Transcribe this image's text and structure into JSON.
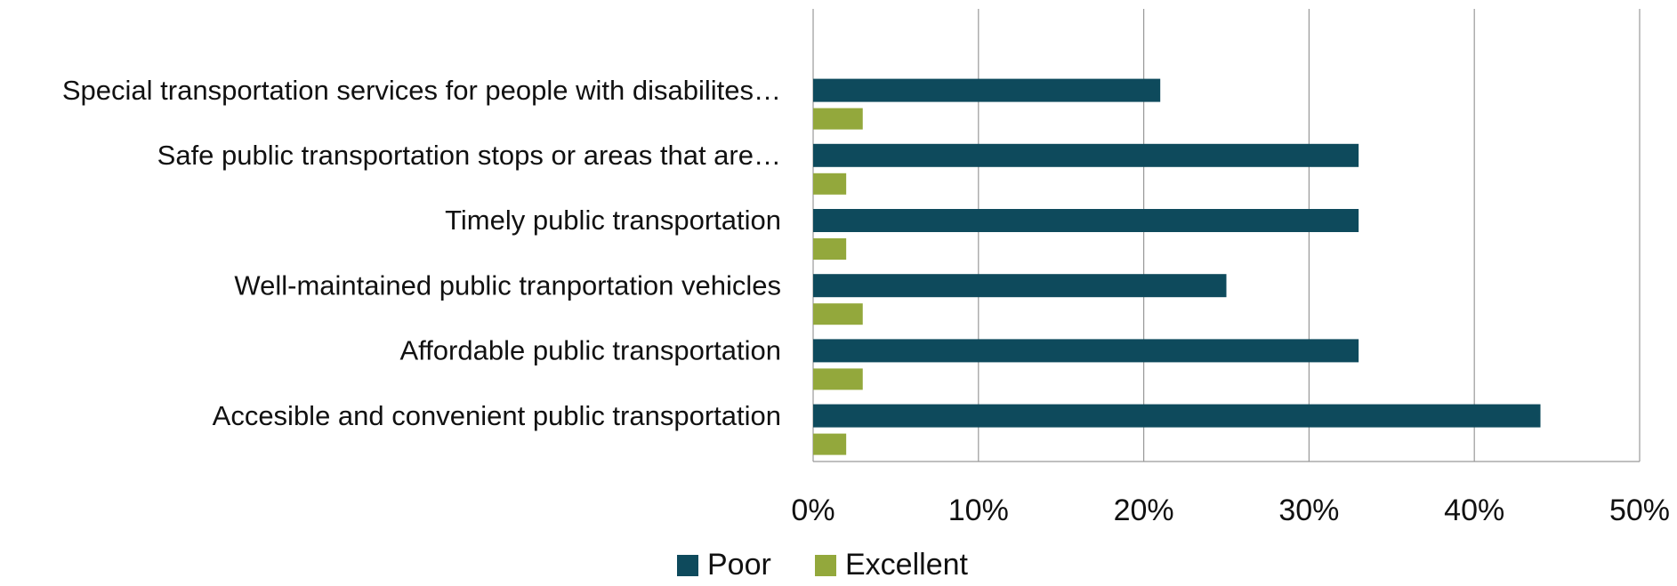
{
  "chart_data": {
    "type": "hbar",
    "categories": [
      "Special transportation services for people with disabilites…",
      "Safe public transportation stops or areas that are…",
      "Timely public transportation",
      "Well-maintained public tranportation vehicles",
      "Affordable public transportation",
      "Accesible and convenient public transportation"
    ],
    "series": [
      {
        "name": "Poor",
        "color": "#0e4a5c",
        "values": [
          21,
          33,
          33,
          25,
          33,
          44
        ]
      },
      {
        "name": "Excellent",
        "color": "#93a83c",
        "values": [
          3,
          2,
          2,
          3,
          3,
          2
        ]
      }
    ],
    "xlim": [
      0,
      50
    ],
    "xticks": [
      {
        "value": 0,
        "label": "0%"
      },
      {
        "value": 10,
        "label": "10%"
      },
      {
        "value": 20,
        "label": "20%"
      },
      {
        "value": 30,
        "label": "30%"
      },
      {
        "value": 40,
        "label": "40%"
      },
      {
        "value": 50,
        "label": "50%"
      }
    ],
    "grid": true,
    "legend": "bottom"
  }
}
